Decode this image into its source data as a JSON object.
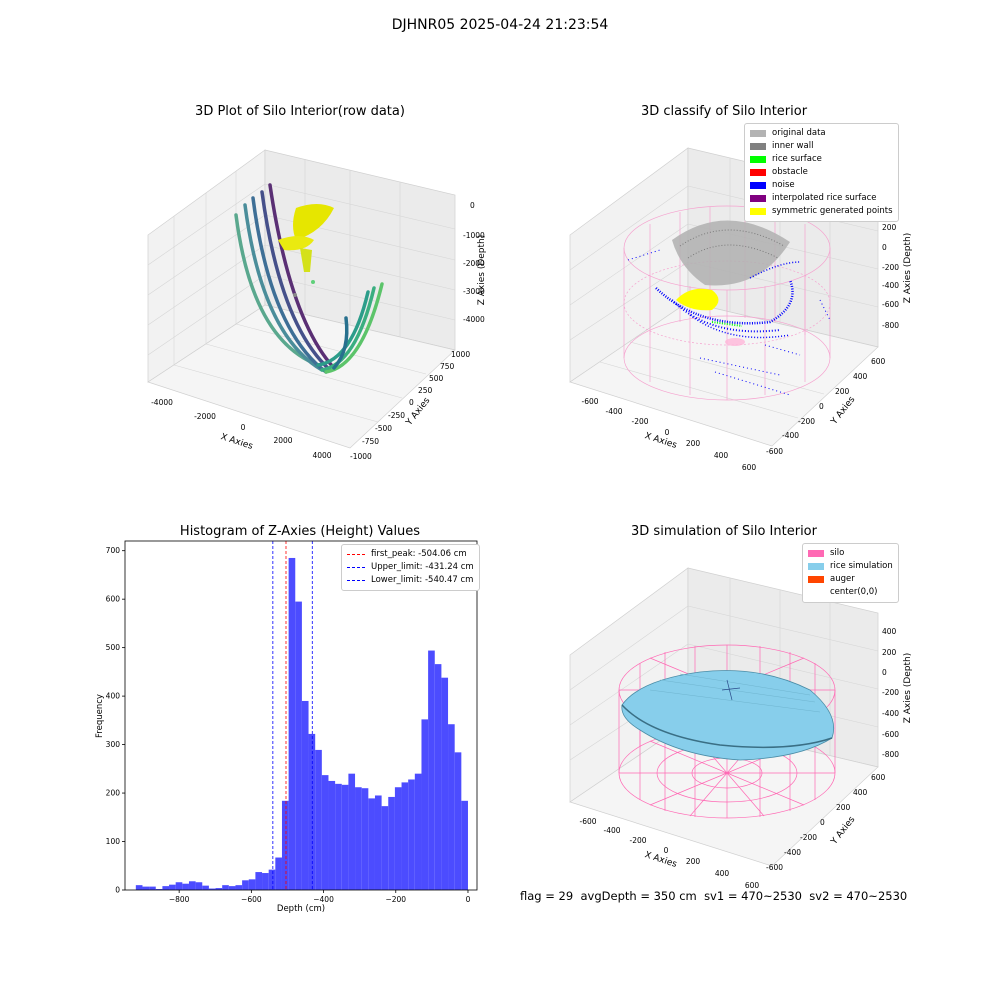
{
  "figure": {
    "title": "DJHNR05 2025-04-24 21:23:54",
    "status": {
      "flag": "flag = 29",
      "avg_depth": "avgDepth = 350 cm",
      "sv1": "sv1 = 470~2530",
      "sv2": "sv2 = 470~2530"
    }
  },
  "panels": {
    "raw": {
      "title": "3D Plot of Silo Interior(row data)",
      "xlabel": "X Axies",
      "ylabel": "Y Axies",
      "zlabel": "Z Axies (Depth)",
      "x_ticks": [
        "-4000",
        "-2000",
        "0",
        "2000",
        "4000"
      ],
      "y_ticks": [
        "1000",
        "750",
        "500",
        "250",
        "0",
        "-250",
        "-500",
        "-750",
        "-1000"
      ],
      "z_ticks": [
        "0",
        "-1000",
        "-2000",
        "-3000",
        "-4000"
      ]
    },
    "classify": {
      "title": "3D classify of Silo Interior",
      "xlabel": "X Axies",
      "ylabel": "Y Axies",
      "zlabel": "Z Axies (Depth)",
      "x_ticks": [
        "-600",
        "-400",
        "-200",
        "0",
        "200",
        "400",
        "600"
      ],
      "y_ticks": [
        "600",
        "400",
        "200",
        "0",
        "-200",
        "-400",
        "-600"
      ],
      "z_ticks": [
        "200",
        "0",
        "-200",
        "-400",
        "-600",
        "-800"
      ],
      "legend": [
        {
          "label": "original data",
          "color": "#b3b3b3"
        },
        {
          "label": "inner wall",
          "color": "#808080"
        },
        {
          "label": "rice surface",
          "color": "#00ff00"
        },
        {
          "label": "obstacle",
          "color": "#ff0000"
        },
        {
          "label": "noise",
          "color": "#0000ff"
        },
        {
          "label": "interpolated rice surface",
          "color": "#800080"
        },
        {
          "label": "symmetric generated points",
          "color": "#ffff00"
        }
      ]
    },
    "simulation": {
      "title": "3D simulation of Silo Interior",
      "xlabel": "X Axies",
      "ylabel": "Y Axies",
      "zlabel": "Z Axies (Depth)",
      "x_ticks": [
        "-600",
        "-400",
        "-200",
        "0",
        "200",
        "400",
        "600"
      ],
      "y_ticks": [
        "600",
        "400",
        "200",
        "0",
        "-200",
        "-400",
        "-600"
      ],
      "z_ticks": [
        "400",
        "200",
        "0",
        "-200",
        "-400",
        "-600",
        "-800"
      ],
      "legend": [
        {
          "label": "silo",
          "color": "#ff69b4"
        },
        {
          "label": "rice simulation",
          "color": "#87ceeb"
        },
        {
          "label": "auger",
          "color": "#ff4500"
        },
        {
          "label": "center(0,0)",
          "color": "#ffffff"
        }
      ]
    }
  },
  "chart_data": {
    "type": "bar",
    "title": "Histogram of Z-Axies (Height) Values",
    "xlabel": "Depth (cm)",
    "ylabel": "Frequency",
    "xlim": [
      -950,
      25
    ],
    "ylim": [
      0,
      720
    ],
    "x_ticks": [
      -800,
      -600,
      -400,
      -200,
      0
    ],
    "y_ticks": [
      0,
      100,
      200,
      300,
      400,
      500,
      600,
      700
    ],
    "bin_width": 18.4,
    "bins": [
      {
        "x0": -920,
        "count": 10
      },
      {
        "x0": -901.6,
        "count": 7
      },
      {
        "x0": -883.2,
        "count": 7
      },
      {
        "x0": -864.8,
        "count": 2
      },
      {
        "x0": -846.4,
        "count": 8
      },
      {
        "x0": -828,
        "count": 11
      },
      {
        "x0": -809.6,
        "count": 16
      },
      {
        "x0": -791.2,
        "count": 13
      },
      {
        "x0": -772.8,
        "count": 18
      },
      {
        "x0": -754.4,
        "count": 16
      },
      {
        "x0": -736,
        "count": 9
      },
      {
        "x0": -717.6,
        "count": 3
      },
      {
        "x0": -699.2,
        "count": 4
      },
      {
        "x0": -680.8,
        "count": 10
      },
      {
        "x0": -662.4,
        "count": 8
      },
      {
        "x0": -644,
        "count": 10
      },
      {
        "x0": -625.6,
        "count": 20
      },
      {
        "x0": -607.2,
        "count": 22
      },
      {
        "x0": -588.8,
        "count": 37
      },
      {
        "x0": -570.4,
        "count": 35
      },
      {
        "x0": -552,
        "count": 42
      },
      {
        "x0": -533.6,
        "count": 67
      },
      {
        "x0": -515.2,
        "count": 184
      },
      {
        "x0": -496.8,
        "count": 685
      },
      {
        "x0": -478.4,
        "count": 595
      },
      {
        "x0": -460,
        "count": 390
      },
      {
        "x0": -441.6,
        "count": 322
      },
      {
        "x0": -423.2,
        "count": 289
      },
      {
        "x0": -404.8,
        "count": 237
      },
      {
        "x0": -386.4,
        "count": 225
      },
      {
        "x0": -368,
        "count": 219
      },
      {
        "x0": -349.6,
        "count": 217
      },
      {
        "x0": -331.2,
        "count": 240
      },
      {
        "x0": -312.8,
        "count": 212
      },
      {
        "x0": -294.4,
        "count": 210
      },
      {
        "x0": -276,
        "count": 189
      },
      {
        "x0": -257.6,
        "count": 195
      },
      {
        "x0": -239.2,
        "count": 173
      },
      {
        "x0": -220.8,
        "count": 192
      },
      {
        "x0": -202.4,
        "count": 212
      },
      {
        "x0": -184,
        "count": 222
      },
      {
        "x0": -165.6,
        "count": 228
      },
      {
        "x0": -147.2,
        "count": 240
      },
      {
        "x0": -128.8,
        "count": 352
      },
      {
        "x0": -110.4,
        "count": 494
      },
      {
        "x0": -92,
        "count": 466
      },
      {
        "x0": -73.6,
        "count": 438
      },
      {
        "x0": -55.2,
        "count": 342
      },
      {
        "x0": -36.8,
        "count": 284
      },
      {
        "x0": -18.4,
        "count": 184
      }
    ],
    "lines": [
      {
        "name": "first_peak: -504.06 cm",
        "x": -504.06,
        "color": "#ff0000"
      },
      {
        "name": "Upper_limit: -431.24 cm",
        "x": -431.24,
        "color": "#0000ff"
      },
      {
        "name": "Lower_limit: -540.47 cm",
        "x": -540.47,
        "color": "#0000ff"
      }
    ],
    "bar_color": "#4c4cff",
    "legend_position": "top-right",
    "grid": false
  }
}
